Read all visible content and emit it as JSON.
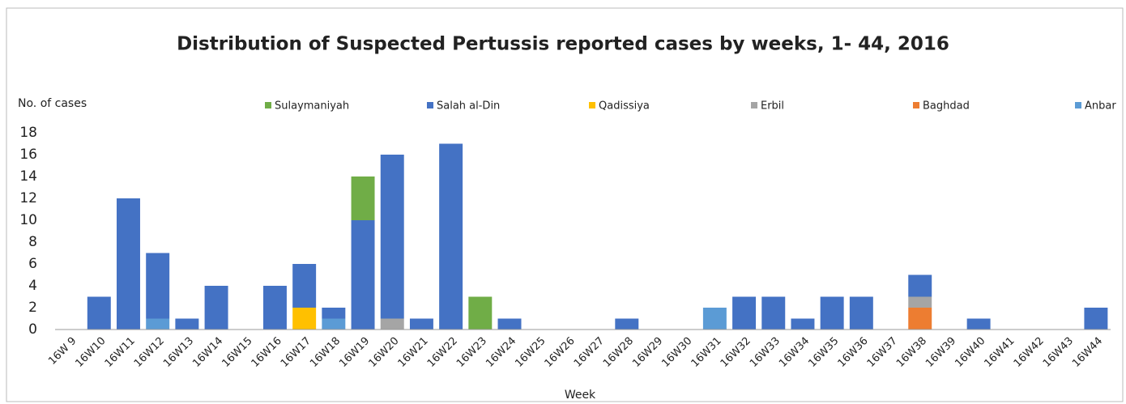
{
  "chart_data": {
    "type": "stacked_bar",
    "title": "Distribution of  Suspected Pertussis reported cases by weeks, 1- 44, 2016",
    "y_label": "No. of cases",
    "x_label": "Week",
    "categories": [
      "16W 9",
      "16W10",
      "16W11",
      "16W12",
      "16W13",
      "16W14",
      "16W15",
      "16W16",
      "16W17",
      "16W18",
      "16W19",
      "16W20",
      "16W21",
      "16W22",
      "16W23",
      "16W24",
      "16W25",
      "16W26",
      "16W27",
      "16W28",
      "16W29",
      "16W30",
      "16W31",
      "16W32",
      "16W33",
      "16W34",
      "16W35",
      "16W36",
      "16W37",
      "16W38",
      "16W39",
      "16W40",
      "16W41",
      "16W42",
      "16W43",
      "16W44"
    ],
    "series": [
      {
        "name": "Sulaymaniyah",
        "color": "#70ad47",
        "values": [
          0,
          0,
          0,
          0,
          0,
          0,
          0,
          0,
          0,
          0,
          4,
          0,
          0,
          0,
          3,
          0,
          0,
          0,
          0,
          0,
          0,
          0,
          0,
          0,
          0,
          0,
          0,
          0,
          0,
          0,
          0,
          0,
          0,
          0,
          0,
          0
        ]
      },
      {
        "name": "Salah al-Din",
        "color": "#4472c4",
        "values": [
          0,
          3,
          12,
          6,
          1,
          4,
          0,
          4,
          4,
          1,
          10,
          15,
          1,
          17,
          0,
          1,
          0,
          0,
          0,
          1,
          0,
          0,
          0,
          3,
          3,
          1,
          3,
          3,
          0,
          2,
          0,
          1,
          0,
          0,
          0,
          2
        ]
      },
      {
        "name": "Qadissiya",
        "color": "#ffc000",
        "values": [
          0,
          0,
          0,
          0,
          0,
          0,
          0,
          0,
          2,
          0,
          0,
          0,
          0,
          0,
          0,
          0,
          0,
          0,
          0,
          0,
          0,
          0,
          0,
          0,
          0,
          0,
          0,
          0,
          0,
          0,
          0,
          0,
          0,
          0,
          0,
          0
        ]
      },
      {
        "name": "Erbil",
        "color": "#a5a5a5",
        "values": [
          0,
          0,
          0,
          0,
          0,
          0,
          0,
          0,
          0,
          0,
          0,
          1,
          0,
          0,
          0,
          0,
          0,
          0,
          0,
          0,
          0,
          0,
          0,
          0,
          0,
          0,
          0,
          0,
          0,
          1,
          0,
          0,
          0,
          0,
          0,
          0
        ]
      },
      {
        "name": "Baghdad",
        "color": "#ed7d31",
        "values": [
          0,
          0,
          0,
          0,
          0,
          0,
          0,
          0,
          0,
          0,
          0,
          0,
          0,
          0,
          0,
          0,
          0,
          0,
          0,
          0,
          0,
          0,
          0,
          0,
          0,
          0,
          0,
          0,
          0,
          2,
          0,
          0,
          0,
          0,
          0,
          0
        ]
      },
      {
        "name": "Anbar",
        "color": "#5b9bd5",
        "values": [
          0,
          0,
          0,
          1,
          0,
          0,
          0,
          0,
          0,
          1,
          0,
          0,
          0,
          0,
          0,
          0,
          0,
          0,
          0,
          0,
          0,
          0,
          2,
          0,
          0,
          0,
          0,
          0,
          0,
          0,
          0,
          0,
          0,
          0,
          0,
          0
        ]
      }
    ],
    "ylim": [
      0,
      18
    ],
    "yticks": [
      0,
      2,
      4,
      6,
      8,
      10,
      12,
      14,
      16,
      18
    ],
    "grid": false,
    "legend": "top"
  }
}
